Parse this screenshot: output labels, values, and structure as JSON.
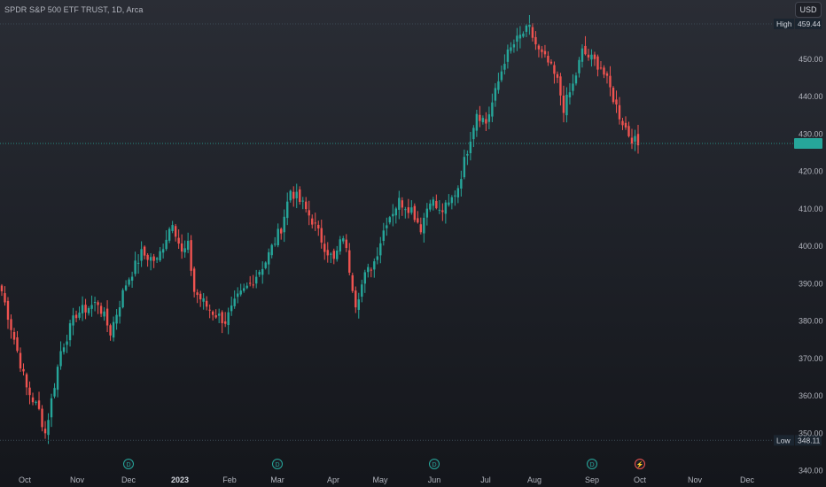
{
  "header": {
    "title": "SPDR S&P 500 ETF TRUST, 1D, Arca",
    "currency": "USD"
  },
  "colors": {
    "up": "#26a69a",
    "down": "#ef5350",
    "grid": "#2a2e39",
    "axis_text": "#b2b5be",
    "accent": "#26a69a"
  },
  "markers": [
    {
      "label": "D",
      "type": "dividend",
      "x_label": "Dec",
      "icon": "dividend-icon"
    },
    {
      "label": "D",
      "type": "dividend",
      "x_label": "Mar",
      "icon": "dividend-icon"
    },
    {
      "label": "D",
      "type": "dividend",
      "x_label": "Jun",
      "icon": "dividend-icon"
    },
    {
      "label": "D",
      "type": "dividend",
      "x_label": "Sep",
      "icon": "dividend-icon"
    },
    {
      "label": "⚡",
      "type": "event",
      "x_label": "Oct",
      "icon": "lightning-icon"
    }
  ],
  "chart_data": {
    "type": "candlestick",
    "title": "SPDR S&P 500 ETF TRUST, 1D, Arca",
    "x_ticks": [
      "Oct",
      "Nov",
      "Dec",
      "2023",
      "Feb",
      "Mar",
      "Apr",
      "May",
      "Jun",
      "Jul",
      "Aug",
      "Sep",
      "Oct",
      "Nov",
      "Dec"
    ],
    "y_ticks": [
      340,
      350,
      360,
      370,
      380,
      390,
      400,
      410,
      420,
      430,
      440,
      450
    ],
    "ylim": [
      338,
      463
    ],
    "high": {
      "label": "High",
      "value": "459.44"
    },
    "low": {
      "label": "Low",
      "value": "348.11"
    },
    "last_price": 427.5,
    "anchors": [
      [
        0,
        388
      ],
      [
        5,
        372
      ],
      [
        8,
        362
      ],
      [
        12,
        356
      ],
      [
        14,
        350
      ],
      [
        19,
        372
      ],
      [
        24,
        382
      ],
      [
        31,
        385
      ],
      [
        35,
        377
      ],
      [
        40,
        390
      ],
      [
        45,
        398
      ],
      [
        50,
        396
      ],
      [
        55,
        407
      ],
      [
        58,
        398
      ],
      [
        60,
        400
      ],
      [
        62,
        388
      ],
      [
        67,
        383
      ],
      [
        72,
        380
      ],
      [
        76,
        386
      ],
      [
        80,
        390
      ],
      [
        85,
        396
      ],
      [
        90,
        405
      ],
      [
        93,
        415
      ],
      [
        97,
        411
      ],
      [
        100,
        407
      ],
      [
        104,
        400
      ],
      [
        107,
        396
      ],
      [
        110,
        403
      ],
      [
        114,
        385
      ],
      [
        117,
        392
      ],
      [
        120,
        396
      ],
      [
        124,
        407
      ],
      [
        128,
        412
      ],
      [
        132,
        410
      ],
      [
        135,
        405
      ],
      [
        138,
        413
      ],
      [
        141,
        409
      ],
      [
        144,
        411
      ],
      [
        147,
        416
      ],
      [
        150,
        426
      ],
      [
        153,
        436
      ],
      [
        156,
        433
      ],
      [
        159,
        441
      ],
      [
        162,
        450
      ],
      [
        165,
        454
      ],
      [
        168,
        457
      ],
      [
        170,
        458
      ],
      [
        173,
        452
      ],
      [
        176,
        449
      ],
      [
        179,
        444
      ],
      [
        181,
        437
      ],
      [
        184,
        443
      ],
      [
        187,
        452
      ],
      [
        190,
        450
      ],
      [
        193,
        448
      ],
      [
        196,
        442
      ],
      [
        199,
        435
      ],
      [
        202,
        430
      ],
      [
        205,
        427
      ]
    ]
  }
}
